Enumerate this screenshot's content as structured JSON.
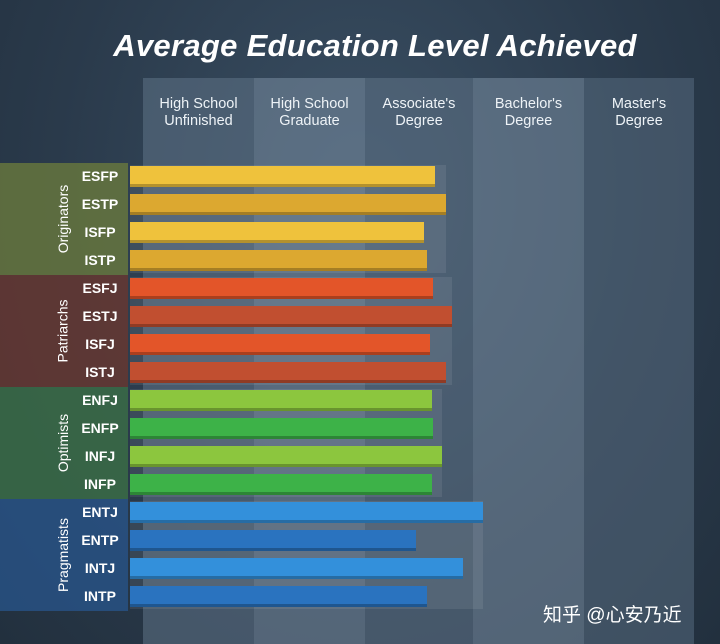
{
  "chart_data": {
    "type": "bar",
    "title": "Average Education Level Achieved",
    "levels": [
      "High School Unfinished",
      "High School Graduate",
      "Associate's Degree",
      "Bachelor's Degree",
      "Master's Degree"
    ],
    "level_lines": [
      [
        "High School",
        "Unfinished"
      ],
      [
        "High School",
        "Graduate"
      ],
      [
        "Associate's",
        "Degree"
      ],
      [
        "Bachelor's",
        "Degree"
      ],
      [
        "Master's",
        "Degree"
      ]
    ],
    "groups": [
      {
        "name": "Originators",
        "color": "#e8b53a",
        "types": [
          {
            "label": "ESFP",
            "value": 2.75,
            "color": "#efc23c"
          },
          {
            "label": "ESTP",
            "value": 2.85,
            "color": "#dca830"
          },
          {
            "label": "ISFP",
            "value": 2.65,
            "color": "#efc23c"
          },
          {
            "label": "ISTP",
            "value": 2.68,
            "color": "#dca830"
          }
        ]
      },
      {
        "name": "Patriarchs",
        "color": "#d24d29",
        "types": [
          {
            "label": "ESFJ",
            "value": 2.73,
            "color": "#e35529"
          },
          {
            "label": "ESTJ",
            "value": 2.9,
            "color": "#c14f30"
          },
          {
            "label": "ISFJ",
            "value": 2.7,
            "color": "#e35529"
          },
          {
            "label": "ISTJ",
            "value": 2.85,
            "color": "#c14f30"
          }
        ]
      },
      {
        "name": "Optimists",
        "color": "#6cc030",
        "types": [
          {
            "label": "ENFJ",
            "value": 2.72,
            "color": "#8cc63e"
          },
          {
            "label": "ENFP",
            "value": 2.73,
            "color": "#3db248"
          },
          {
            "label": "INFJ",
            "value": 2.81,
            "color": "#8cc63e"
          },
          {
            "label": "INFP",
            "value": 2.72,
            "color": "#3db248"
          }
        ]
      },
      {
        "name": "Pragmatists",
        "color": "#2d7cc8",
        "types": [
          {
            "label": "ENTJ",
            "value": 3.18,
            "color": "#3390db"
          },
          {
            "label": "ENTP",
            "value": 2.58,
            "color": "#2a73bf"
          },
          {
            "label": "INTJ",
            "value": 3.0,
            "color": "#3390db"
          },
          {
            "label": "INTP",
            "value": 2.68,
            "color": "#2a73bf"
          }
        ]
      }
    ]
  },
  "watermark": "知乎 @心安乃近"
}
